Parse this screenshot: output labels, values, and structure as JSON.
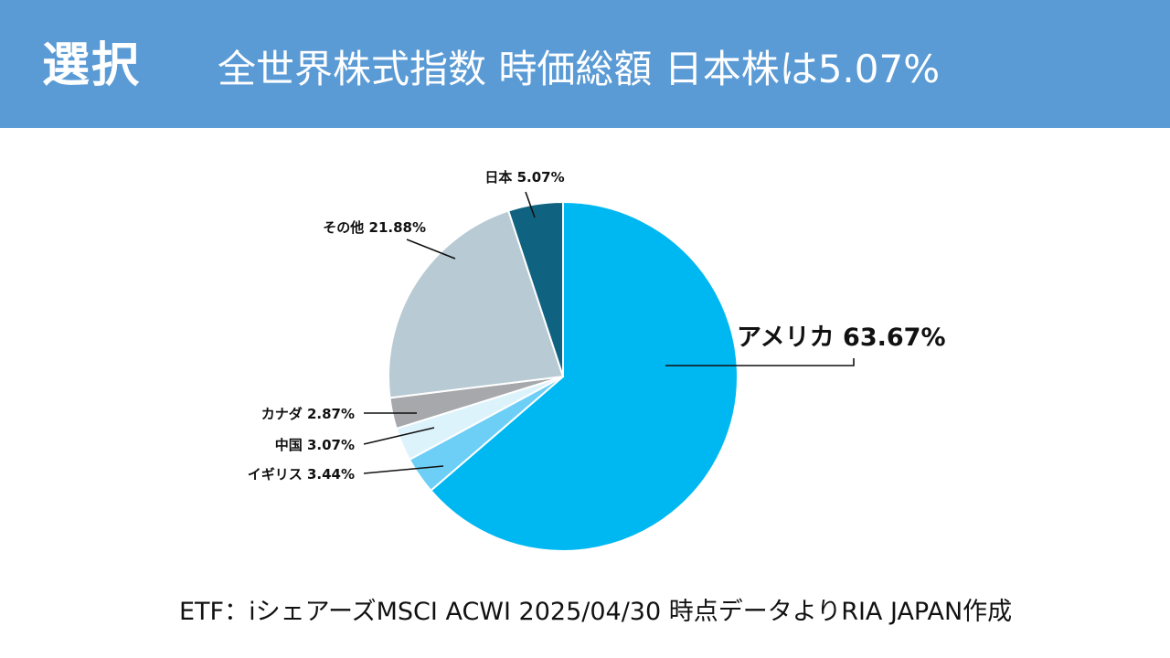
{
  "header": {
    "badge": "選択",
    "title": "全世界株式指数 時価総額 日本株は5.07%"
  },
  "chart_data": {
    "type": "pie",
    "start_angle_deg": 0,
    "direction": "clockwise",
    "slices": [
      {
        "label": "アメリカ",
        "value": 63.67,
        "display": "63.67%",
        "color": "#00b8f1"
      },
      {
        "label": "イギリス",
        "value": 3.44,
        "display": "3.44%",
        "color": "#6dcff6"
      },
      {
        "label": "中国",
        "value": 3.07,
        "display": "3.07%",
        "color": "#ddf3fc"
      },
      {
        "label": "カナダ",
        "value": 2.87,
        "display": "2.87%",
        "color": "#a6a8ab"
      },
      {
        "label": "その他",
        "value": 21.88,
        "display": "21.88%",
        "color": "#b8cad3"
      },
      {
        "label": "日本",
        "value": 5.07,
        "display": "5.07%",
        "color": "#0f6381"
      }
    ]
  },
  "footer": {
    "source": "ETF：iシェアーズMSCI ACWI 2025/04/30 時点データよりRIA JAPAN作成"
  }
}
